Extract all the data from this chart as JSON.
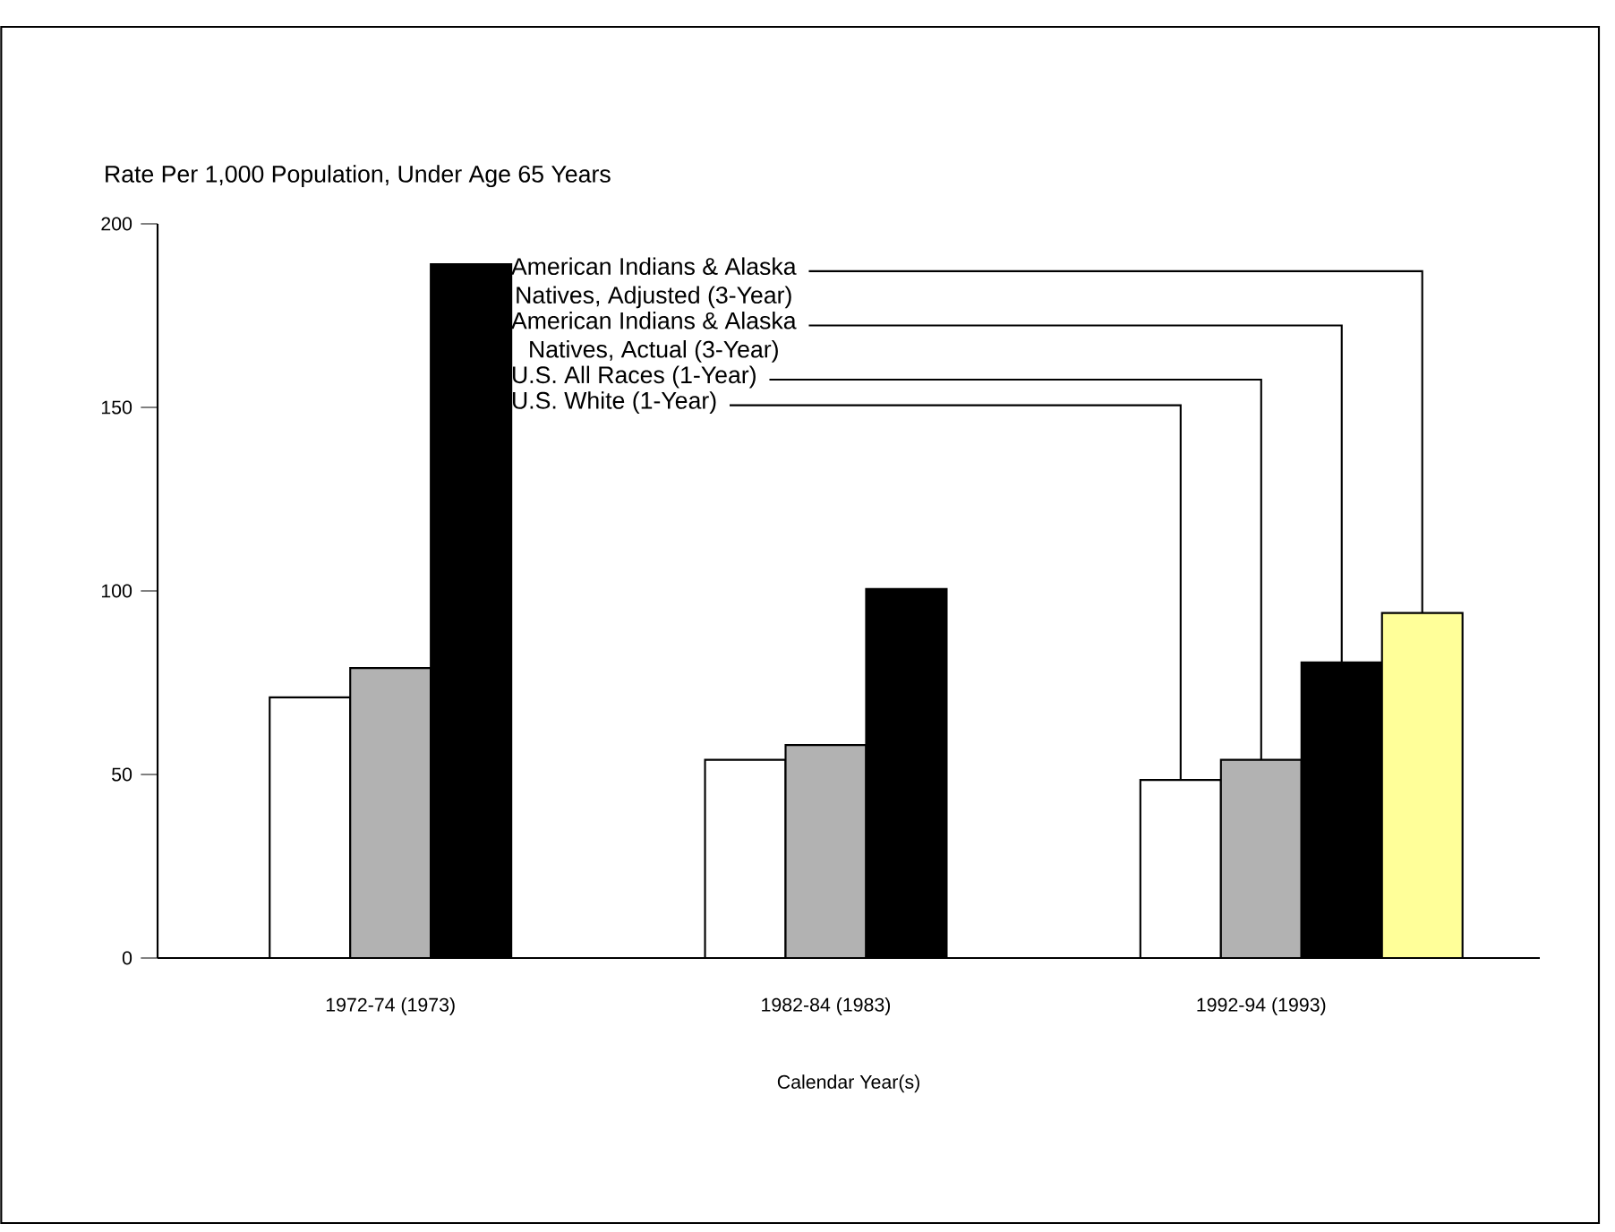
{
  "chart_data": {
    "type": "bar",
    "ylabel": "Rate Per 1,000 Population, Under Age 65 Years",
    "xlabel": "Calendar Year(s)",
    "categories": [
      "1972-74 (1973)",
      "1982-84 (1983)",
      "1992-94 (1993)"
    ],
    "ylim": [
      0,
      200
    ],
    "yticks": [
      0,
      50,
      100,
      150,
      200
    ],
    "grid": false,
    "series": [
      {
        "name": "U.S. White (1-Year)",
        "color": "#ffffff",
        "values": [
          71,
          54,
          48.5
        ]
      },
      {
        "name": "U.S. All Races (1-Year)",
        "color": "#b2b2b2",
        "values": [
          79,
          58,
          54
        ]
      },
      {
        "name": "American Indians & Alaska Natives, Actual (3-Year)",
        "color": "#000000",
        "values": [
          189,
          100.5,
          80.5
        ]
      },
      {
        "name": "American Indians & Alaska Natives, Adjusted (3-Year)",
        "color": "#ffff99",
        "values": [
          null,
          null,
          94
        ]
      }
    ]
  }
}
